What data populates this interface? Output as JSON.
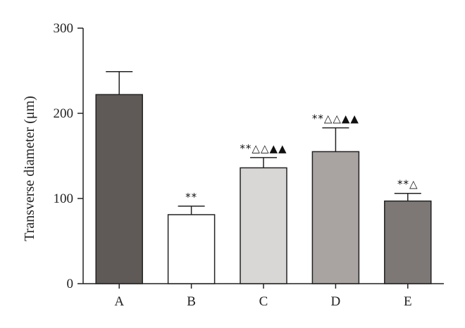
{
  "chart_data": {
    "type": "bar",
    "categories": [
      "A",
      "B",
      "C",
      "D",
      "E"
    ],
    "values": [
      222,
      81,
      136,
      155,
      97
    ],
    "error_upper": [
      249,
      91,
      148,
      183,
      106
    ],
    "annotations": [
      "",
      "**",
      "**△△▲▲",
      "**△△▲▲",
      "**△"
    ],
    "bar_colors": [
      "#5f5a57",
      "#ffffff",
      "#d9d7d6",
      "#a9a3a2",
      "#7d7776"
    ],
    "ylabel": "Transverse diameter (μm)",
    "ylim": [
      0,
      300
    ],
    "yticks": [
      0,
      100,
      200,
      300
    ],
    "grid": false
  }
}
